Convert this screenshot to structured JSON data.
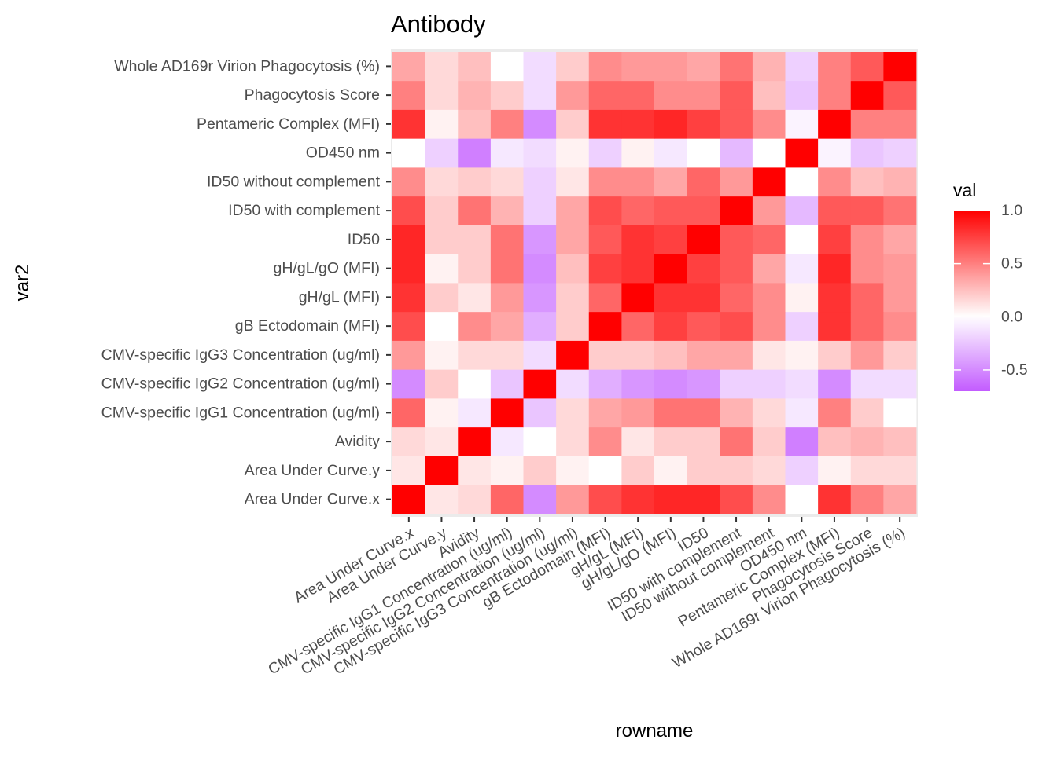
{
  "chart_data": {
    "type": "heatmap",
    "title": "Antibody",
    "xlabel": "rowname",
    "ylabel": "var2",
    "legend": {
      "title": "val",
      "position": "right",
      "ticks": [
        {
          "value": 1.0,
          "label": "1.0"
        },
        {
          "value": 0.5,
          "label": "0.5"
        },
        {
          "value": 0.0,
          "label": "0.0"
        },
        {
          "value": -0.5,
          "label": "-0.5"
        }
      ],
      "range": [
        -0.7,
        1.0
      ]
    },
    "colors": {
      "high": "#FF0000",
      "mid": "#FFFFFF",
      "low": "#C35CFF",
      "panel_background": "#EBEBEB",
      "axis_text": "#4D4D4D"
    },
    "x_categories": [
      "Area Under Curve.x",
      "Area Under Curve.y",
      "Avidity",
      "CMV-specific IgG1 Concentration (ug/ml)",
      "CMV-specific IgG2 Concentration (ug/ml)",
      "CMV-specific IgG3 Concentration (ug/ml)",
      "gB Ectodomain (MFI)",
      "gH/gL (MFI)",
      "gH/gL/gO (MFI)",
      "ID50",
      "ID50 with complement",
      "ID50 without complement",
      "OD450 nm",
      "Pentameric Complex (MFI)",
      "Phagocytosis Score",
      "Whole AD169r Virion Phagocytosis (%)"
    ],
    "y_categories": [
      "Area Under Curve.x",
      "Area Under Curve.y",
      "Avidity",
      "CMV-specific IgG1 Concentration (ug/ml)",
      "CMV-specific IgG2 Concentration (ug/ml)",
      "CMV-specific IgG3 Concentration (ug/ml)",
      "gB Ectodomain (MFI)",
      "gH/gL (MFI)",
      "gH/gL/gO (MFI)",
      "ID50",
      "ID50 with complement",
      "ID50 without complement",
      "OD450 nm",
      "Pentameric Complex (MFI)",
      "Phagocytosis Score",
      "Whole AD169r Virion Phagocytosis (%)"
    ],
    "values": [
      [
        1.0,
        0.1,
        0.15,
        0.6,
        -0.5,
        0.4,
        0.7,
        0.8,
        0.85,
        0.85,
        0.7,
        0.45,
        0.0,
        0.8,
        0.5,
        0.35
      ],
      [
        0.1,
        1.0,
        0.1,
        0.05,
        0.2,
        0.05,
        0.0,
        0.2,
        0.05,
        0.2,
        0.2,
        0.15,
        -0.2,
        0.05,
        0.15,
        0.15
      ],
      [
        0.15,
        0.1,
        1.0,
        -0.1,
        0.0,
        0.15,
        0.45,
        0.1,
        0.2,
        0.2,
        0.55,
        0.2,
        -0.55,
        0.25,
        0.3,
        0.25
      ],
      [
        0.6,
        0.05,
        -0.1,
        1.0,
        -0.25,
        0.15,
        0.35,
        0.4,
        0.55,
        0.55,
        0.3,
        0.15,
        -0.1,
        0.5,
        0.2,
        0.0
      ],
      [
        -0.5,
        0.2,
        0.0,
        -0.25,
        1.0,
        -0.15,
        -0.35,
        -0.45,
        -0.5,
        -0.45,
        -0.2,
        -0.2,
        -0.15,
        -0.5,
        -0.15,
        -0.15
      ],
      [
        0.4,
        0.05,
        0.15,
        0.15,
        -0.15,
        1.0,
        0.2,
        0.2,
        0.25,
        0.35,
        0.35,
        0.1,
        0.05,
        0.2,
        0.4,
        0.2
      ],
      [
        0.7,
        0.0,
        0.45,
        0.35,
        -0.35,
        0.2,
        1.0,
        0.6,
        0.75,
        0.65,
        0.7,
        0.45,
        -0.2,
        0.8,
        0.6,
        0.45
      ],
      [
        0.8,
        0.2,
        0.1,
        0.4,
        -0.45,
        0.2,
        0.6,
        1.0,
        0.8,
        0.8,
        0.6,
        0.45,
        0.05,
        0.8,
        0.6,
        0.4
      ],
      [
        0.85,
        0.05,
        0.2,
        0.55,
        -0.5,
        0.25,
        0.75,
        0.8,
        1.0,
        0.75,
        0.65,
        0.35,
        -0.1,
        0.85,
        0.45,
        0.4
      ],
      [
        0.85,
        0.2,
        0.2,
        0.55,
        -0.45,
        0.35,
        0.65,
        0.8,
        0.75,
        1.0,
        0.65,
        0.6,
        0.0,
        0.75,
        0.45,
        0.35
      ],
      [
        0.7,
        0.2,
        0.55,
        0.3,
        -0.2,
        0.35,
        0.7,
        0.6,
        0.65,
        0.65,
        1.0,
        0.4,
        -0.3,
        0.65,
        0.65,
        0.55
      ],
      [
        0.45,
        0.15,
        0.2,
        0.15,
        -0.2,
        0.1,
        0.45,
        0.45,
        0.35,
        0.6,
        0.4,
        1.0,
        0.0,
        0.45,
        0.25,
        0.3
      ],
      [
        0.0,
        -0.2,
        -0.55,
        -0.1,
        -0.15,
        0.05,
        -0.2,
        0.05,
        -0.1,
        0.0,
        -0.3,
        0.0,
        1.0,
        -0.05,
        -0.25,
        -0.2
      ],
      [
        0.8,
        0.05,
        0.25,
        0.5,
        -0.5,
        0.2,
        0.8,
        0.8,
        0.85,
        0.75,
        0.65,
        0.45,
        -0.05,
        1.0,
        0.5,
        0.5
      ],
      [
        0.5,
        0.15,
        0.3,
        0.2,
        -0.15,
        0.4,
        0.6,
        0.6,
        0.45,
        0.45,
        0.65,
        0.25,
        -0.25,
        0.5,
        1.0,
        0.65
      ],
      [
        0.35,
        0.15,
        0.25,
        0.0,
        -0.15,
        0.2,
        0.45,
        0.4,
        0.4,
        0.35,
        0.55,
        0.3,
        -0.2,
        0.5,
        0.65,
        1.0
      ]
    ]
  }
}
